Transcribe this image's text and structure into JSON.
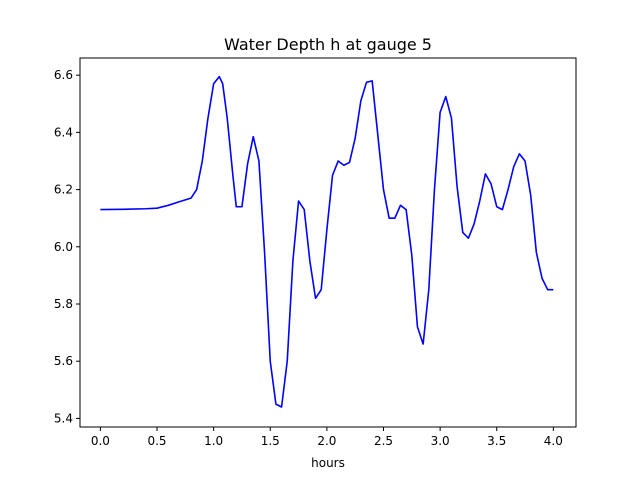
{
  "chart_data": {
    "type": "line",
    "title": "Water Depth h at gauge 5",
    "xlabel": "hours",
    "ylabel": "",
    "xlim": [
      -0.18,
      4.2
    ],
    "ylim": [
      5.37,
      6.66
    ],
    "x_ticks": [
      0.0,
      0.5,
      1.0,
      1.5,
      2.0,
      2.5,
      3.0,
      3.5,
      4.0
    ],
    "x_tick_labels": [
      "0.0",
      "0.5",
      "1.0",
      "1.5",
      "2.0",
      "2.5",
      "3.0",
      "3.5",
      "4.0"
    ],
    "y_ticks": [
      5.4,
      5.6,
      5.8,
      6.0,
      6.2,
      6.4,
      6.6
    ],
    "y_tick_labels": [
      "5.4",
      "5.6",
      "5.8",
      "6.0",
      "6.2",
      "6.4",
      "6.6"
    ],
    "grid": false,
    "legend": "none",
    "line_color": "#0000ff",
    "series": [
      {
        "x": [
          0.0,
          0.2,
          0.4,
          0.5,
          0.6,
          0.7,
          0.8,
          0.85,
          0.9,
          0.95,
          1.0,
          1.05,
          1.08,
          1.12,
          1.17,
          1.2,
          1.25,
          1.3,
          1.35,
          1.4,
          1.45,
          1.5,
          1.55,
          1.6,
          1.65,
          1.7,
          1.75,
          1.8,
          1.85,
          1.9,
          1.95,
          2.0,
          2.05,
          2.1,
          2.15,
          2.2,
          2.25,
          2.3,
          2.35,
          2.4,
          2.45,
          2.5,
          2.55,
          2.6,
          2.65,
          2.7,
          2.75,
          2.8,
          2.85,
          2.9,
          2.95,
          3.0,
          3.05,
          3.1,
          3.15,
          3.2,
          3.25,
          3.3,
          3.35,
          3.4,
          3.45,
          3.5,
          3.55,
          3.6,
          3.65,
          3.7,
          3.75,
          3.8,
          3.85,
          3.9,
          3.95,
          4.0
        ],
        "y": [
          6.13,
          6.131,
          6.133,
          6.135,
          6.145,
          6.158,
          6.17,
          6.2,
          6.3,
          6.45,
          6.57,
          6.595,
          6.57,
          6.45,
          6.25,
          6.14,
          6.14,
          6.29,
          6.385,
          6.3,
          5.98,
          5.6,
          5.45,
          5.44,
          5.6,
          5.95,
          6.16,
          6.13,
          5.95,
          5.82,
          5.85,
          6.06,
          6.25,
          6.3,
          6.285,
          6.295,
          6.38,
          6.51,
          6.575,
          6.58,
          6.39,
          6.2,
          6.1,
          6.1,
          6.145,
          6.13,
          5.97,
          5.72,
          5.66,
          5.85,
          6.2,
          6.47,
          6.525,
          6.45,
          6.21,
          6.05,
          6.03,
          6.08,
          6.16,
          6.255,
          6.22,
          6.14,
          6.13,
          6.2,
          6.28,
          6.325,
          6.3,
          6.18,
          5.98,
          5.89,
          5.85,
          5.85
        ]
      }
    ]
  }
}
